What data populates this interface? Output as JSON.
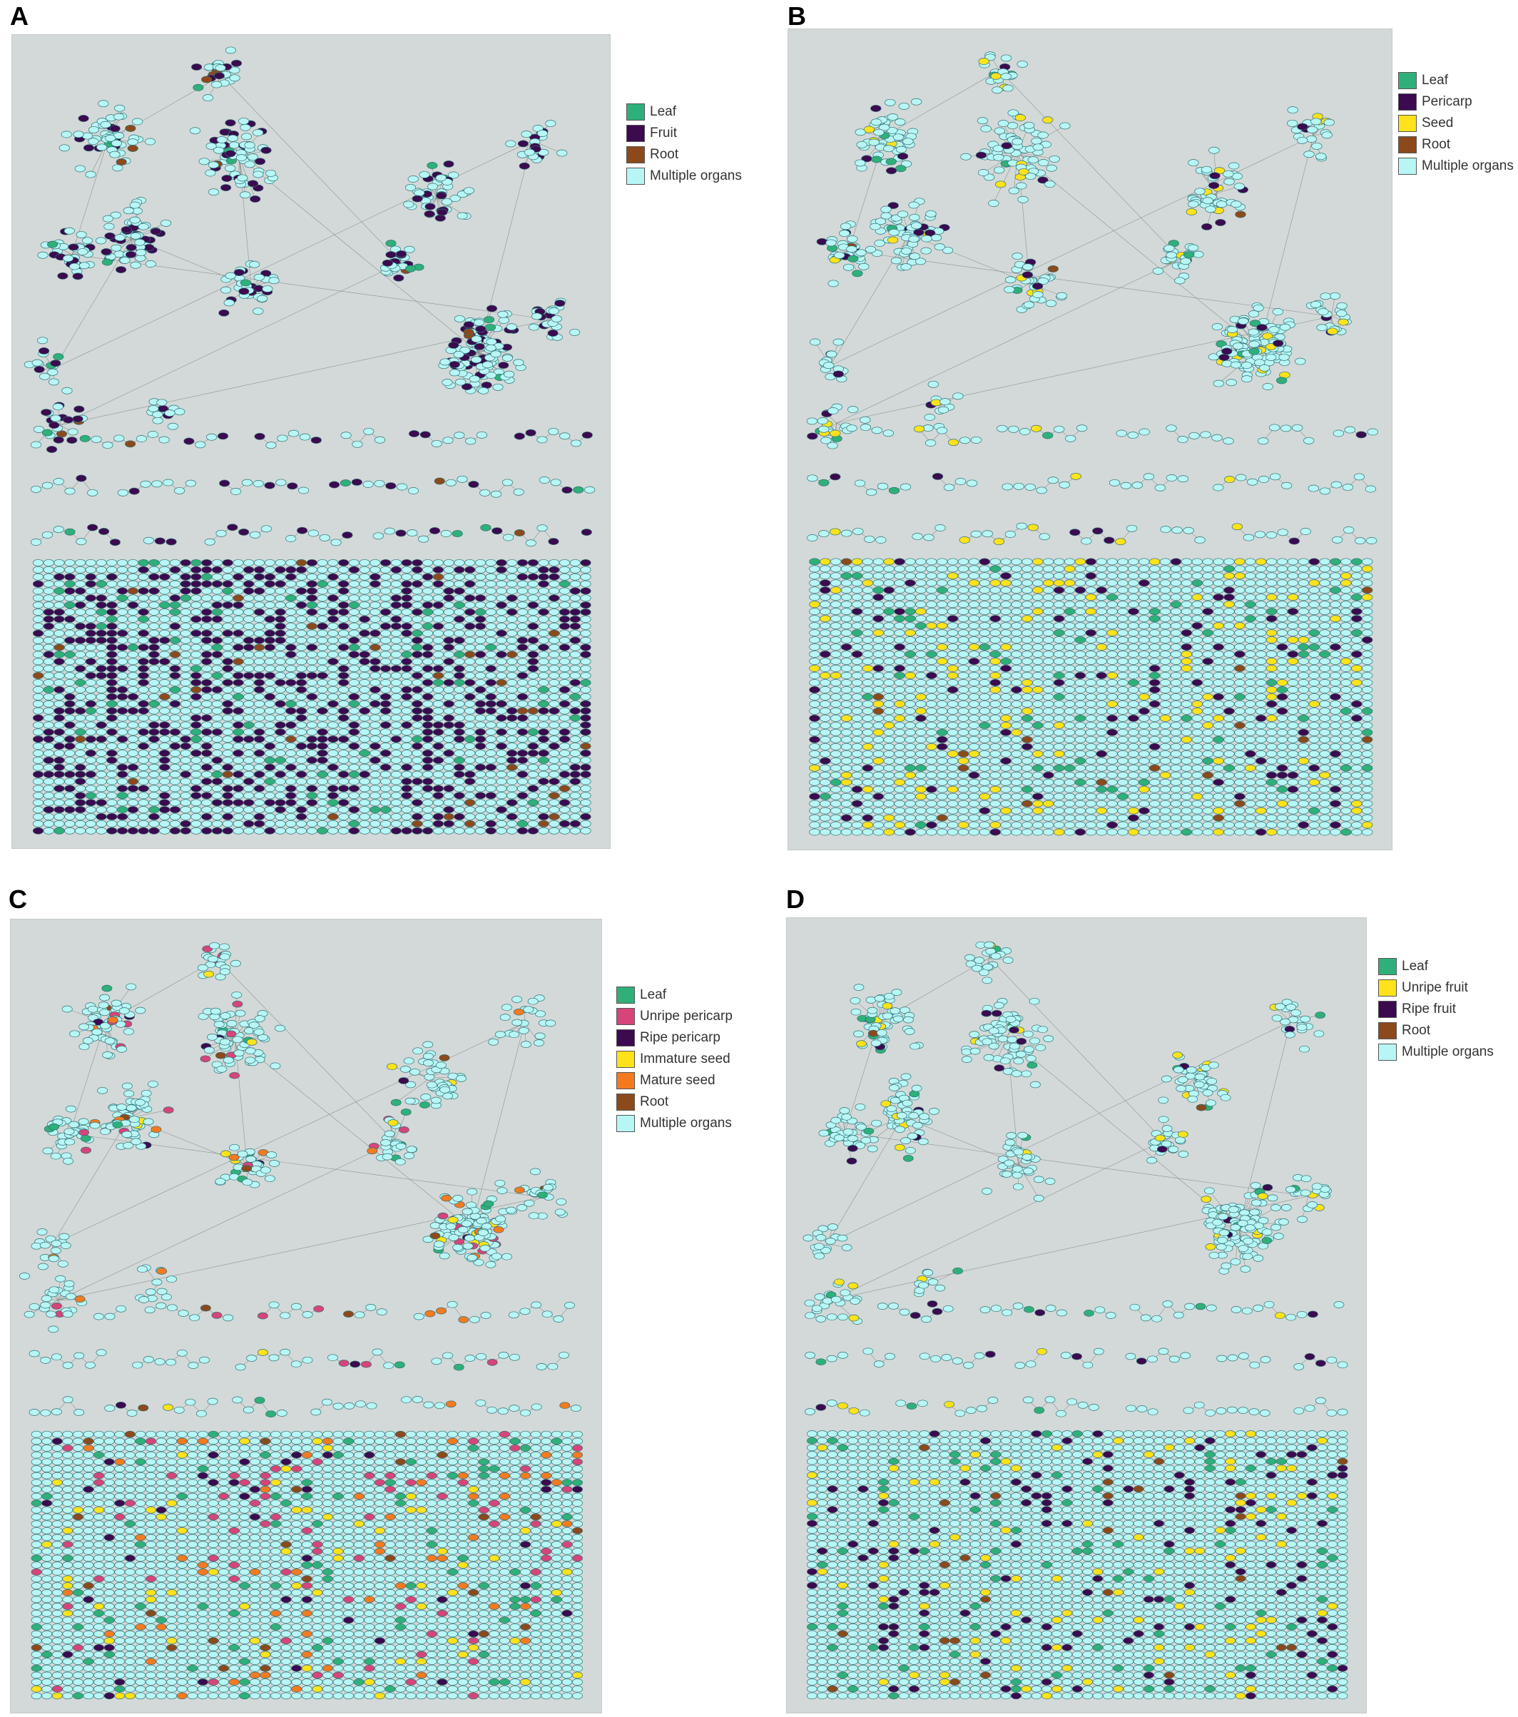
{
  "figure": {
    "panels": [
      {
        "letter": "A",
        "legend": [
          {
            "label": "Leaf",
            "color": "#2fb07a"
          },
          {
            "label": "Fruit",
            "color": "#3c0a4f"
          },
          {
            "label": "Root",
            "color": "#8c4a1c"
          },
          {
            "label": "Multiple organs",
            "color": "#b8f6f6"
          }
        ],
        "node_mix": {
          "#3c0a4f": 0.3,
          "#2fb07a": 0.04,
          "#8c4a1c": 0.015
        }
      },
      {
        "letter": "B",
        "legend": [
          {
            "label": "Leaf",
            "color": "#2fb07a"
          },
          {
            "label": "Pericarp",
            "color": "#3c0a4f"
          },
          {
            "label": "Seed",
            "color": "#ffe21a"
          },
          {
            "label": "Root",
            "color": "#8c4a1c"
          },
          {
            "label": "Multiple organs",
            "color": "#b8f6f6"
          }
        ],
        "node_mix": {
          "#3c0a4f": 0.07,
          "#ffe21a": 0.07,
          "#2fb07a": 0.04,
          "#8c4a1c": 0.012
        }
      },
      {
        "letter": "C",
        "legend": [
          {
            "label": "Leaf",
            "color": "#2fb07a"
          },
          {
            "label": "Unripe pericarp",
            "color": "#d6457a"
          },
          {
            "label": "Ripe pericarp",
            "color": "#3c0a4f"
          },
          {
            "label": "Immature seed",
            "color": "#ffe21a"
          },
          {
            "label": "Mature seed",
            "color": "#f47a1f"
          },
          {
            "label": "Root",
            "color": "#8c4a1c"
          },
          {
            "label": "Multiple organs",
            "color": "#b8f6f6"
          }
        ],
        "node_mix": {
          "#2fb07a": 0.045,
          "#d6457a": 0.04,
          "#3c0a4f": 0.02,
          "#ffe21a": 0.03,
          "#f47a1f": 0.03,
          "#8c4a1c": 0.01
        }
      },
      {
        "letter": "D",
        "legend": [
          {
            "label": "Leaf",
            "color": "#2fb07a"
          },
          {
            "label": "Unripe fruit",
            "color": "#ffe21a"
          },
          {
            "label": "Ripe fruit",
            "color": "#3c0a4f"
          },
          {
            "label": "Root",
            "color": "#8c4a1c"
          },
          {
            "label": "Multiple organs",
            "color": "#b8f6f6"
          }
        ],
        "node_mix": {
          "#2fb07a": 0.05,
          "#ffe21a": 0.05,
          "#3c0a4f": 0.06,
          "#8c4a1c": 0.012
        }
      }
    ]
  }
}
